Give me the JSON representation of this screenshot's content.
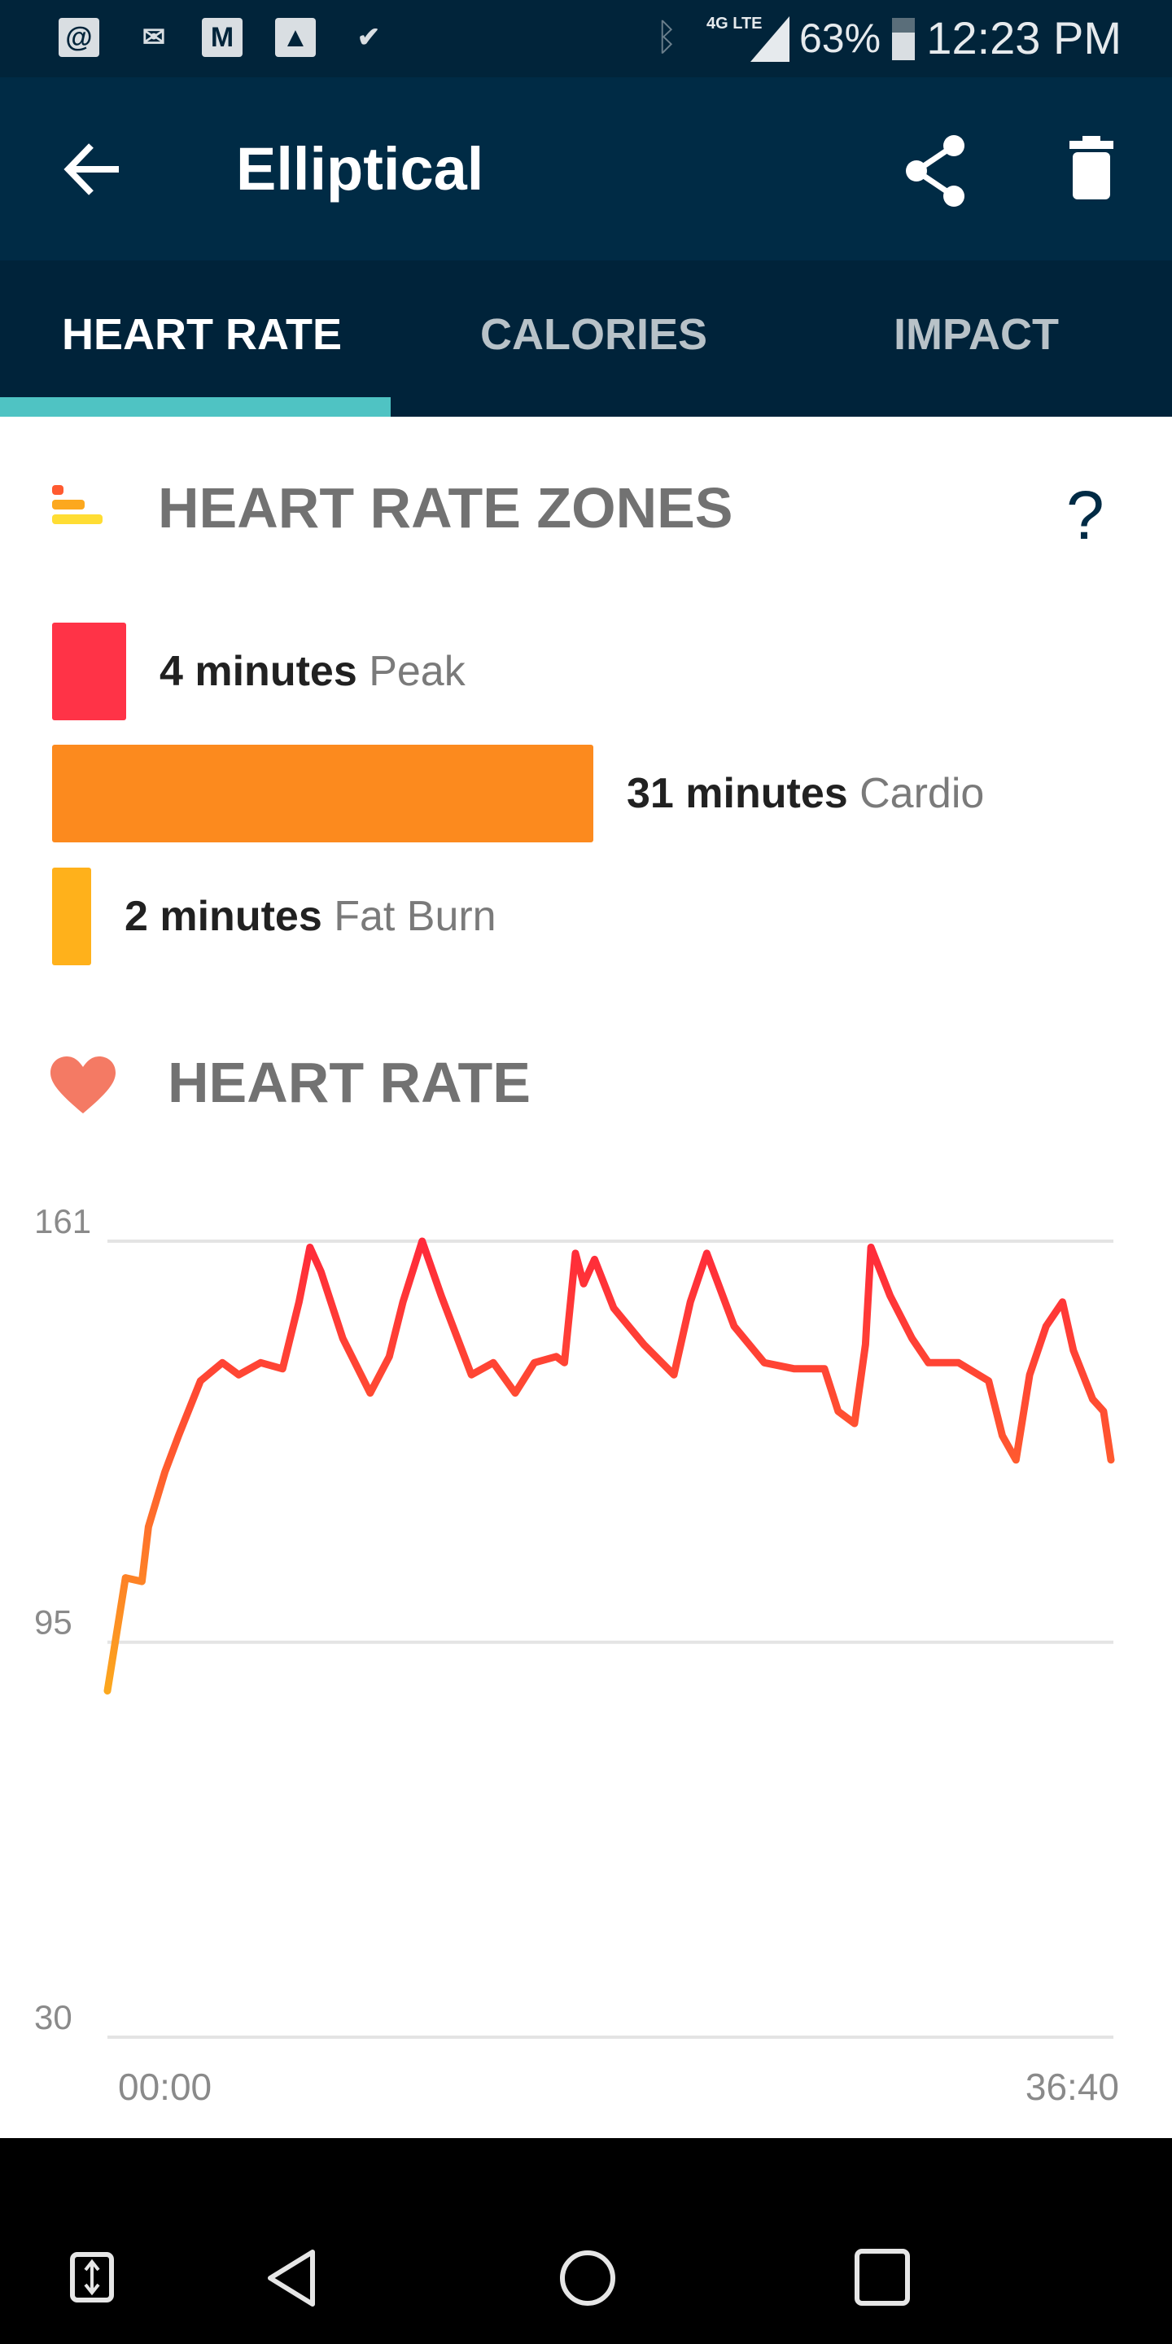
{
  "status_bar": {
    "time": "12:23 PM",
    "battery": "63%",
    "network": "4G LTE",
    "notification_icons": [
      "email-icon",
      "voicemail-icon",
      "gmail-icon",
      "gallery-icon",
      "tasks-icon"
    ]
  },
  "header": {
    "title": "Elliptical",
    "back_icon": "arrow-left-icon",
    "share_icon": "share-icon",
    "delete_icon": "trash-icon"
  },
  "tabs": [
    {
      "label": "HEART RATE",
      "active": true
    },
    {
      "label": "CALORIES",
      "active": false
    },
    {
      "label": "IMPACT",
      "active": false
    }
  ],
  "zones": {
    "title": "HEART RATE ZONES",
    "help": "?",
    "items": [
      {
        "amount": "4 minutes",
        "label": "Peak",
        "minutes": 4,
        "color": "#ff3347"
      },
      {
        "amount": "31 minutes",
        "label": "Cardio",
        "minutes": 31,
        "color": "#fc8a1e"
      },
      {
        "amount": "2 minutes",
        "label": "Fat Burn",
        "minutes": 2,
        "color": "#ffb11b"
      }
    ]
  },
  "heart_rate": {
    "title": "HEART RATE"
  },
  "chart_data": {
    "type": "line",
    "y_ticks": [
      "161",
      "95",
      "30"
    ],
    "ylim": [
      30,
      161
    ],
    "x_ticks": [
      "00:00",
      "36:40"
    ],
    "xlim_minutes": [
      0,
      36.67
    ],
    "grid": true,
    "colors": {
      "low": "#fca81e",
      "high": "#ff2a3a"
    },
    "x": [
      0,
      0.66,
      1.26,
      1.5,
      2.1,
      2.6,
      3.4,
      4.2,
      4.8,
      5.6,
      6.4,
      7.0,
      7.4,
      7.8,
      8.6,
      9.6,
      10.3,
      10.8,
      11.5,
      12.2,
      13.3,
      14.1,
      14.9,
      15.6,
      16.4,
      16.7,
      17.1,
      17.4,
      17.8,
      18.5,
      19.6,
      20.7,
      21.3,
      21.9,
      22.9,
      24.0,
      25.1,
      26.2,
      26.7,
      27.3,
      27.7,
      27.9,
      28.6,
      29.4,
      30.0,
      31.1,
      32.2,
      32.7,
      33.2,
      33.7,
      34.3,
      34.9,
      35.3,
      36.0,
      36.4,
      36.67
    ],
    "y": [
      87,
      105.6,
      105,
      114,
      123,
      129,
      138,
      141,
      139,
      141,
      140,
      151,
      160,
      156,
      145,
      136,
      142,
      151,
      161,
      152,
      139,
      141,
      136,
      141,
      142,
      141,
      159,
      154,
      158,
      150,
      144,
      139,
      151,
      159,
      147,
      141,
      140,
      140,
      133,
      131,
      144,
      160,
      152,
      145,
      141,
      141,
      138,
      129,
      125,
      139,
      147,
      151,
      143,
      135,
      133,
      125
    ]
  },
  "nav_bar": {
    "icons": [
      "switch-icon",
      "back-icon",
      "home-icon",
      "recents-icon"
    ]
  }
}
